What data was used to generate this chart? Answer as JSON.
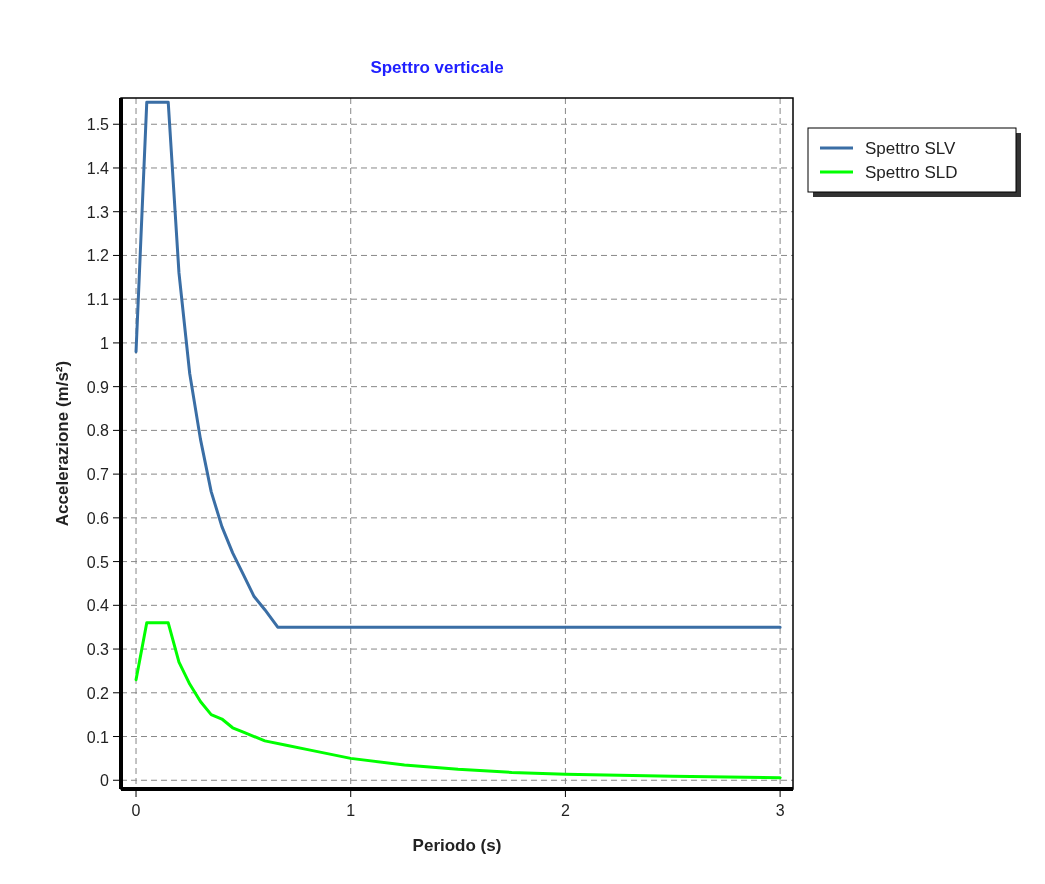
{
  "chart_data": {
    "type": "line",
    "title": "Spettro verticale",
    "xlabel": "Periodo (s)",
    "ylabel": "Accelerazione (m/s²)",
    "xlim": [
      -0.07,
      3.06
    ],
    "ylim": [
      -0.02,
      1.56
    ],
    "xticks": [
      0,
      1,
      2,
      3
    ],
    "yticks": [
      0,
      0.1,
      0.2,
      0.3,
      0.4,
      0.5,
      0.6,
      0.7,
      0.8,
      0.9,
      1,
      1.1,
      1.2,
      1.3,
      1.4,
      1.5
    ],
    "grid": true,
    "legend": "top right",
    "line_style": "solid",
    "marker": "none",
    "series": [
      {
        "name": "Spettro SLV",
        "color": "#3a6ea5",
        "x": [
          0,
          0.05,
          0.15,
          0.2,
          0.25,
          0.3,
          0.35,
          0.4,
          0.45,
          0.5,
          0.55,
          0.6,
          0.66,
          0.7,
          1,
          1.5,
          2,
          2.5,
          3
        ],
        "values": [
          0.98,
          1.55,
          1.55,
          1.16,
          0.93,
          0.78,
          0.66,
          0.58,
          0.52,
          0.47,
          0.42,
          0.39,
          0.35,
          0.35,
          0.35,
          0.35,
          0.35,
          0.35,
          0.35
        ]
      },
      {
        "name": "Spettro SLD",
        "color": "#00ff00",
        "x": [
          0,
          0.05,
          0.15,
          0.2,
          0.25,
          0.3,
          0.35,
          0.4,
          0.45,
          0.5,
          0.6,
          0.7,
          0.8,
          1,
          1.25,
          1.5,
          1.75,
          2,
          2.5,
          3
        ],
        "values": [
          0.23,
          0.36,
          0.36,
          0.27,
          0.22,
          0.18,
          0.15,
          0.14,
          0.12,
          0.11,
          0.09,
          0.08,
          0.07,
          0.05,
          0.035,
          0.025,
          0.018,
          0.014,
          0.009,
          0.006
        ]
      }
    ]
  }
}
